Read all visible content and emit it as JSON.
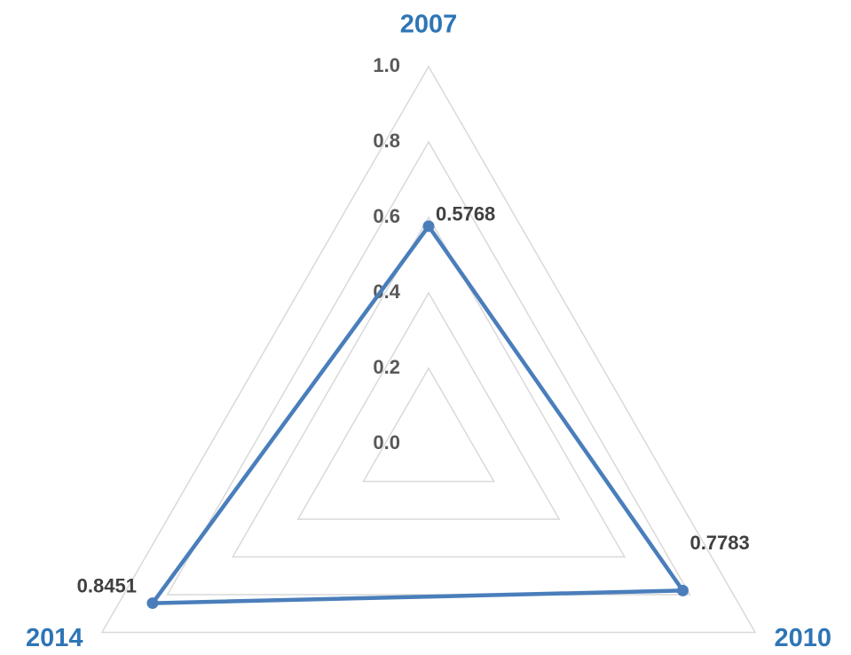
{
  "chart_data": {
    "type": "radar",
    "categories": [
      "2007",
      "2010",
      "2014"
    ],
    "values": [
      0.5768,
      0.7783,
      0.8451
    ],
    "color": "#4a7ebb",
    "category_color": "#2e75b6",
    "rlim": [
      0,
      1
    ],
    "rticks": [
      {
        "value": 0,
        "label": "0.0"
      },
      0.2,
      0.4,
      0.6,
      0.8,
      {
        "value": 1,
        "label": "1.0"
      }
    ],
    "grid": true
  }
}
